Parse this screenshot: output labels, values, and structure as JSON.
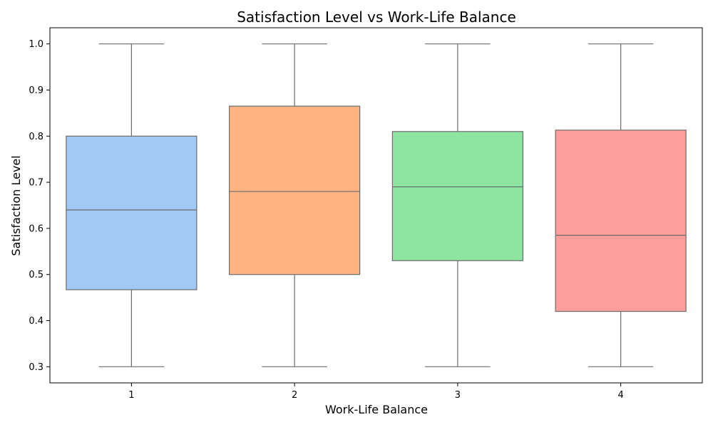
{
  "chart_data": {
    "type": "box",
    "title": "Satisfaction Level vs Work-Life Balance",
    "xlabel": "Work-Life Balance",
    "ylabel": "Satisfaction Level",
    "categories": [
      "1",
      "2",
      "3",
      "4"
    ],
    "ylim": [
      0.265,
      1.035
    ],
    "yticks": [
      0.3,
      0.4,
      0.5,
      0.6,
      0.7,
      0.8,
      0.9,
      1.0
    ],
    "ytick_labels": [
      "0.3",
      "0.4",
      "0.5",
      "0.6",
      "0.7",
      "0.8",
      "0.9",
      "1.0"
    ],
    "grid": false,
    "boxes": [
      {
        "category": "1",
        "whisker_low": 0.3,
        "q1": 0.467,
        "median": 0.64,
        "q3": 0.8,
        "whisker_high": 1.0,
        "color": "#a1c9f4"
      },
      {
        "category": "2",
        "whisker_low": 0.3,
        "q1": 0.5,
        "median": 0.68,
        "q3": 0.865,
        "whisker_high": 1.0,
        "color": "#ffb482"
      },
      {
        "category": "3",
        "whisker_low": 0.3,
        "q1": 0.53,
        "median": 0.69,
        "q3": 0.81,
        "whisker_high": 1.0,
        "color": "#8de5a1"
      },
      {
        "category": "4",
        "whisker_low": 0.3,
        "q1": 0.42,
        "median": 0.585,
        "q3": 0.813,
        "whisker_high": 1.0,
        "color": "#ff9f9b"
      }
    ],
    "line_color": "#6b6b6b"
  }
}
